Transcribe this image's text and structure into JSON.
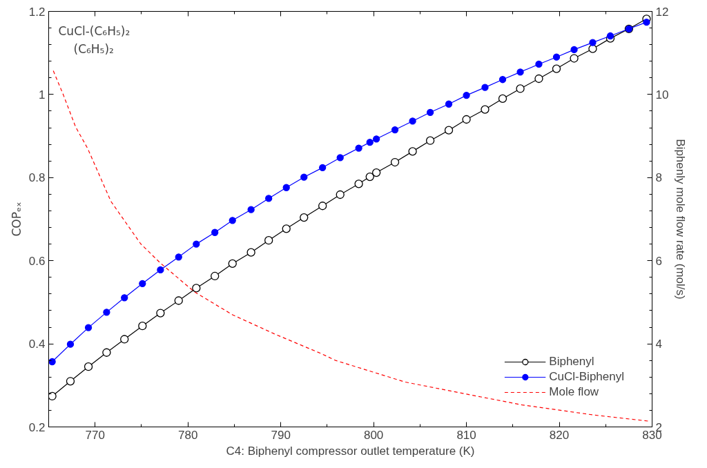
{
  "chart_data": {
    "type": "line",
    "xlabel": "C4: Biphenyl compressor outlet temperature (K)",
    "ylabel": "COPₑₓ",
    "y2label": "Biphenly mole flow rate (mol/s)",
    "annotations": [
      "CuCl-(C₆H₅)₂",
      "(C₆H₅)₂"
    ],
    "xlim": [
      765,
      830
    ],
    "xticks": [
      770,
      780,
      790,
      800,
      810,
      820,
      830
    ],
    "ylim": [
      0.2,
      1.2
    ],
    "yticks": [
      0.2,
      0.4,
      0.6,
      0.8,
      {
        "value": 1.0,
        "label": "1"
      },
      1.2
    ],
    "y2lim": [
      2,
      12
    ],
    "y2ticks": [
      2,
      4,
      6,
      8,
      10,
      12
    ],
    "grid": false,
    "legend": "bottom right",
    "series": [
      {
        "name": "Biphenyl",
        "color": "#000000",
        "marker": "circle_open",
        "line_style": "solid",
        "x": [
          765.38,
          767.34,
          769.28,
          771.24,
          773.16,
          775.1,
          777.04,
          779.0,
          780.9,
          782.9,
          784.8,
          786.8,
          788.7,
          790.6,
          792.5,
          794.5,
          796.4,
          798.4,
          799.6,
          800.3,
          802.3,
          804.2,
          806.1,
          808.1,
          810.0,
          812.0,
          813.9,
          815.8,
          817.8,
          819.7,
          821.6,
          823.6,
          825.5,
          827.5,
          829.4
        ],
        "values": [
          0.274,
          0.31,
          0.345,
          0.379,
          0.411,
          0.443,
          0.474,
          0.504,
          0.534,
          0.563,
          0.593,
          0.62,
          0.649,
          0.677,
          0.704,
          0.732,
          0.759,
          0.785,
          0.802,
          0.812,
          0.837,
          0.863,
          0.889,
          0.914,
          0.94,
          0.964,
          0.99,
          1.014,
          1.038,
          1.062,
          1.087,
          1.11,
          1.135,
          1.158,
          1.182
        ]
      },
      {
        "name": "CuCl-Biphenyl",
        "color": "#0000ff",
        "marker": "circle",
        "line_style": "solid",
        "x": [
          765.38,
          767.34,
          769.28,
          771.24,
          773.16,
          775.1,
          777.04,
          779.0,
          780.9,
          782.9,
          784.8,
          786.8,
          788.7,
          790.6,
          792.5,
          794.5,
          796.4,
          798.4,
          799.6,
          800.3,
          802.3,
          804.2,
          806.1,
          808.1,
          810.0,
          812.0,
          813.9,
          815.8,
          817.8,
          819.7,
          821.6,
          823.6,
          825.5,
          827.5,
          829.4
        ],
        "values": [
          0.357,
          0.399,
          0.439,
          0.476,
          0.511,
          0.545,
          0.578,
          0.609,
          0.64,
          0.668,
          0.697,
          0.723,
          0.75,
          0.776,
          0.801,
          0.824,
          0.848,
          0.871,
          0.885,
          0.893,
          0.915,
          0.936,
          0.957,
          0.977,
          0.998,
          1.017,
          1.036,
          1.054,
          1.073,
          1.09,
          1.108,
          1.125,
          1.141,
          1.158,
          1.174
        ]
      },
      {
        "name": "Mole flow",
        "color": "#ff0000",
        "marker": "none",
        "line_style": "dashed",
        "axis": "y2",
        "x": [
          765.5,
          766.6,
          767.9,
          769.2,
          771.7,
          774.9,
          777.0,
          780.7,
          784.8,
          789.3,
          794.3,
          795.9,
          803.4,
          810.0,
          816.0,
          823.6,
          829.6
        ],
        "values": [
          10.57,
          9.98,
          9.22,
          8.7,
          7.43,
          6.41,
          5.95,
          5.25,
          4.7,
          4.24,
          3.77,
          3.6,
          3.08,
          2.79,
          2.53,
          2.29,
          2.14
        ]
      }
    ]
  }
}
